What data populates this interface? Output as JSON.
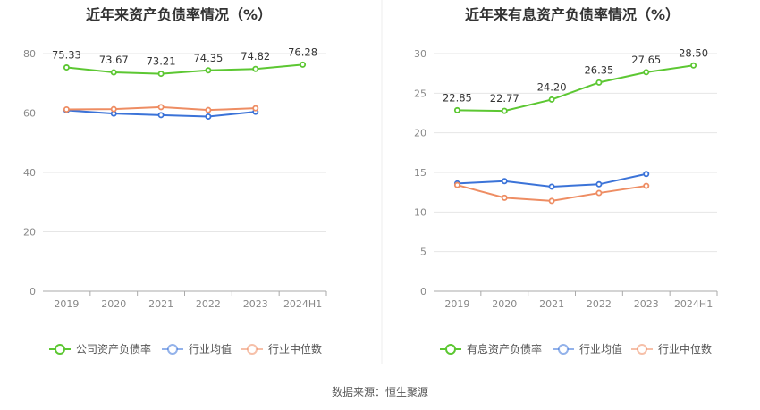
{
  "chart_data": [
    {
      "type": "line",
      "title": "近年来资产负债率情况（%）",
      "categories": [
        "2019",
        "2020",
        "2021",
        "2022",
        "2023",
        "2024H1"
      ],
      "ylim": [
        0,
        80
      ],
      "yticks": [
        0,
        20,
        40,
        60,
        80
      ],
      "grid": true,
      "legend_position": "bottom",
      "series": [
        {
          "name": "公司资产负债率",
          "color": "#5cc732",
          "values": [
            75.33,
            73.67,
            73.21,
            74.35,
            74.82,
            76.28
          ],
          "labels": [
            "75.33",
            "73.67",
            "73.21",
            "74.35",
            "74.82",
            "76.28"
          ]
        },
        {
          "name": "行业均值",
          "color": "#3b73d8",
          "values": [
            60.9,
            59.8,
            59.3,
            58.8,
            60.4,
            null
          ]
        },
        {
          "name": "行业中位数",
          "color": "#ee8d63",
          "values": [
            61.2,
            61.3,
            62.0,
            61.0,
            61.6,
            null
          ]
        }
      ]
    },
    {
      "type": "line",
      "title": "近年来有息资产负债率情况（%）",
      "categories": [
        "2019",
        "2020",
        "2021",
        "2022",
        "2023",
        "2024H1"
      ],
      "ylim": [
        0,
        30
      ],
      "yticks": [
        0,
        5,
        10,
        15,
        20,
        25,
        30
      ],
      "grid": true,
      "legend_position": "bottom",
      "series": [
        {
          "name": "有息资产负债率",
          "color": "#5cc732",
          "values": [
            22.85,
            22.77,
            24.2,
            26.35,
            27.65,
            28.5
          ],
          "labels": [
            "22.85",
            "22.77",
            "24.20",
            "26.35",
            "27.65",
            "28.50"
          ]
        },
        {
          "name": "行业均值",
          "color": "#3b73d8",
          "values": [
            13.6,
            13.9,
            13.2,
            13.5,
            14.8,
            null
          ]
        },
        {
          "name": "行业中位数",
          "color": "#ee8d63",
          "values": [
            13.4,
            11.8,
            11.4,
            12.4,
            13.3,
            null
          ]
        }
      ]
    }
  ],
  "footer": {
    "source": "数据来源：恒生聚源"
  }
}
